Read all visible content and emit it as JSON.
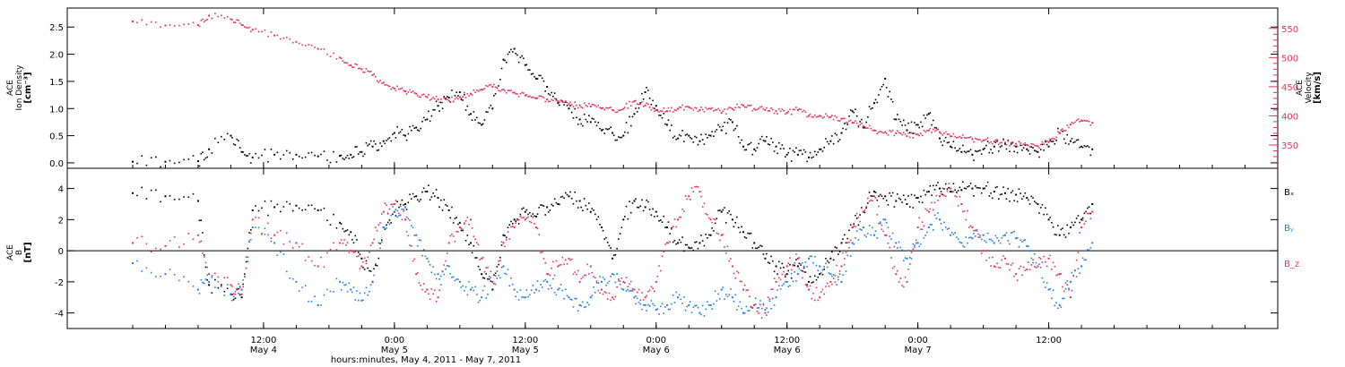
{
  "chart_data": [
    {
      "type": "scatter",
      "panel": "top",
      "left_axis": {
        "label_lines": [
          "ACE",
          "Ion Density",
          "[cm⁻³]"
        ],
        "range": [
          -0.1,
          2.85
        ],
        "ticks": [
          0.0,
          0.5,
          1.0,
          1.5,
          2.0,
          2.5
        ],
        "tick_labels": [
          "0.0",
          "0.5",
          "1.0",
          "1.5",
          "2.0",
          "2.5"
        ]
      },
      "right_axis": {
        "label_lines": [
          "ACE",
          "Velocity",
          "[km/s]"
        ],
        "range": [
          310,
          585
        ],
        "ticks": [
          350,
          400,
          450,
          500,
          550
        ],
        "tick_labels": [
          "350",
          "400",
          "450",
          "500",
          "550"
        ],
        "color": "#e8315b"
      },
      "series": [
        {
          "color": "#000000",
          "axis": "left",
          "x": [
            0,
            3,
            6,
            7,
            9,
            10,
            11,
            13,
            15,
            17,
            19,
            20,
            21,
            22,
            23,
            24,
            25,
            26,
            27,
            28,
            29,
            30,
            31,
            32,
            33,
            34,
            35,
            36,
            37,
            38,
            39,
            40,
            41,
            42,
            43,
            44,
            45,
            46,
            47,
            48,
            49,
            50,
            51,
            52,
            53,
            54,
            55,
            56,
            57,
            58,
            59,
            60,
            61,
            62,
            63,
            64,
            65,
            66,
            67,
            68,
            69,
            70,
            71,
            72,
            73,
            74,
            75,
            76,
            77,
            78,
            79,
            80,
            81,
            82,
            83,
            84,
            85,
            86,
            87,
            88
          ],
          "y": [
            0.02,
            0.02,
            0.03,
            0.25,
            0.5,
            0.2,
            0.1,
            0.15,
            0.15,
            0.12,
            0.13,
            0.15,
            0.2,
            0.3,
            0.4,
            0.55,
            0.5,
            0.65,
            0.8,
            1.05,
            1.2,
            1.3,
            0.9,
            0.7,
            1.0,
            1.9,
            2.1,
            1.8,
            1.55,
            1.4,
            1.1,
            1.0,
            0.8,
            0.75,
            0.6,
            0.55,
            0.5,
            0.9,
            1.3,
            1.05,
            0.7,
            0.45,
            0.5,
            0.4,
            0.5,
            0.6,
            0.75,
            0.3,
            0.25,
            0.4,
            0.3,
            0.15,
            0.15,
            0.1,
            0.25,
            0.4,
            0.55,
            0.95,
            0.65,
            1.1,
            1.55,
            0.8,
            0.6,
            0.7,
            0.9,
            0.45,
            0.3,
            0.2,
            0.15,
            0.25,
            0.3,
            0.35,
            0.3,
            0.25,
            0.2,
            0.3,
            0.55,
            0.4,
            0.3,
            0.25
          ]
        },
        {
          "color": "#e8315b",
          "axis": "right",
          "x": [
            0,
            3,
            6,
            7,
            9,
            10,
            11,
            13,
            15,
            17,
            19,
            20,
            21,
            22,
            23,
            24,
            25,
            26,
            27,
            28,
            29,
            30,
            31,
            32,
            33,
            34,
            35,
            36,
            37,
            38,
            39,
            40,
            41,
            42,
            43,
            44,
            45,
            46,
            47,
            48,
            49,
            50,
            51,
            52,
            53,
            54,
            55,
            56,
            57,
            58,
            59,
            60,
            61,
            62,
            63,
            64,
            65,
            66,
            67,
            68,
            69,
            70,
            71,
            72,
            73,
            74,
            75,
            76,
            77,
            78,
            79,
            80,
            81,
            82,
            83,
            84,
            85,
            86,
            87,
            88
          ],
          "y": [
            562,
            555,
            556,
            572,
            566,
            556,
            548,
            538,
            527,
            515,
            500,
            487,
            480,
            470,
            457,
            447,
            442,
            438,
            432,
            428,
            426,
            432,
            438,
            445,
            450,
            445,
            440,
            435,
            430,
            428,
            425,
            420,
            418,
            416,
            413,
            410,
            412,
            425,
            418,
            410,
            408,
            412,
            415,
            410,
            412,
            405,
            412,
            418,
            412,
            410,
            408,
            405,
            410,
            400,
            400,
            398,
            395,
            388,
            382,
            375,
            372,
            370,
            365,
            368,
            375,
            372,
            365,
            362,
            360,
            358,
            356,
            354,
            352,
            350,
            348,
            355,
            370,
            385,
            392,
            388
          ]
        }
      ]
    },
    {
      "type": "scatter",
      "panel": "bottom",
      "left_axis": {
        "label_lines": [
          "ACE",
          "B",
          "[nT]"
        ],
        "range": [
          -5.0,
          5.3
        ],
        "ticks": [
          -4,
          -2,
          0,
          2,
          4
        ],
        "tick_labels": [
          "-4",
          "-2",
          "0",
          "2",
          "4"
        ]
      },
      "zero_line": 0,
      "series": [
        {
          "name": "Bₓ",
          "color": "#000000",
          "x": [
            0,
            3,
            6,
            7,
            9,
            10,
            11,
            13,
            15,
            17,
            19,
            20,
            21,
            22,
            23,
            24,
            25,
            26,
            27,
            28,
            29,
            30,
            31,
            32,
            33,
            34,
            35,
            36,
            37,
            38,
            39,
            40,
            41,
            42,
            43,
            44,
            45,
            46,
            47,
            48,
            49,
            50,
            51,
            52,
            53,
            54,
            55,
            56,
            57,
            58,
            59,
            60,
            61,
            62,
            63,
            64,
            65,
            66,
            67,
            68,
            69,
            70,
            71,
            72,
            73,
            74,
            75,
            76,
            77,
            78,
            79,
            80,
            81,
            82,
            83,
            84,
            85,
            86,
            87,
            88
          ],
          "y": [
            3.7,
            3.5,
            3.2,
            -2.2,
            -2.8,
            -3.0,
            2.6,
            2.8,
            2.9,
            2.6,
            1.8,
            1.2,
            -0.5,
            -2.0,
            1.5,
            2.5,
            3.0,
            3.5,
            3.8,
            3.4,
            2.6,
            1.8,
            0.5,
            -1.5,
            -2.5,
            1.0,
            2.0,
            2.5,
            2.2,
            2.8,
            3.0,
            3.5,
            3.2,
            2.5,
            1.5,
            -0.5,
            2.0,
            3.2,
            2.8,
            2.5,
            1.5,
            0.5,
            0.2,
            0.5,
            1.0,
            2.5,
            2.0,
            1.2,
            0.5,
            -0.5,
            -1.0,
            -1.5,
            -1.0,
            -2.0,
            -1.5,
            -0.5,
            0.5,
            1.5,
            2.5,
            3.8,
            3.5,
            3.2,
            3.0,
            3.4,
            3.8,
            4.0,
            3.8,
            3.9,
            4.0,
            4.0,
            3.8,
            3.7,
            3.6,
            3.4,
            3.0,
            2.0,
            1.0,
            1.5,
            2.0,
            3.0
          ]
        },
        {
          "name": "Bᵧ",
          "color": "#1f7fe0",
          "x": [
            0,
            3,
            6,
            7,
            9,
            10,
            11,
            13,
            15,
            17,
            19,
            20,
            21,
            22,
            23,
            24,
            25,
            26,
            27,
            28,
            29,
            30,
            31,
            32,
            33,
            34,
            35,
            36,
            37,
            38,
            39,
            40,
            41,
            42,
            43,
            44,
            45,
            46,
            47,
            48,
            49,
            50,
            51,
            52,
            53,
            54,
            55,
            56,
            57,
            58,
            59,
            60,
            61,
            62,
            63,
            64,
            65,
            66,
            67,
            68,
            69,
            70,
            71,
            72,
            73,
            74,
            75,
            76,
            77,
            78,
            79,
            80,
            81,
            82,
            83,
            84,
            85,
            86,
            87,
            88
          ],
          "y": [
            -0.8,
            -1.5,
            -2.5,
            -2.0,
            -2.8,
            -2.5,
            1.5,
            0.5,
            -2.0,
            -3.5,
            -2.0,
            -2.5,
            -3.2,
            -2.0,
            1.5,
            2.5,
            2.8,
            1.0,
            -0.5,
            -1.5,
            -1.0,
            -2.0,
            -2.5,
            -3.0,
            -2.0,
            -1.0,
            -2.5,
            -3.0,
            -2.5,
            -2.0,
            -2.5,
            -3.0,
            -3.5,
            -3.0,
            -2.0,
            -1.5,
            -2.5,
            -3.0,
            -3.5,
            -3.8,
            -3.5,
            -3.0,
            -3.5,
            -4.0,
            -3.5,
            -2.5,
            -3.0,
            -4.0,
            -3.5,
            -3.8,
            -3.0,
            -2.0,
            -1.5,
            -0.5,
            -1.0,
            -1.5,
            -2.0,
            0.5,
            1.5,
            1.0,
            2.0,
            0.5,
            -0.5,
            0.5,
            1.5,
            2.0,
            1.0,
            0.5,
            0.8,
            1.0,
            0.5,
            1.0,
            0.8,
            0.3,
            -1.0,
            -2.5,
            -3.5,
            -2.0,
            -1.0,
            0.5
          ]
        },
        {
          "name": "B_z",
          "color": "#e8315b",
          "x": [
            0,
            3,
            6,
            7,
            9,
            10,
            11,
            13,
            15,
            17,
            19,
            20,
            21,
            22,
            23,
            24,
            25,
            26,
            27,
            28,
            29,
            30,
            31,
            32,
            33,
            34,
            35,
            36,
            37,
            38,
            39,
            40,
            41,
            42,
            43,
            44,
            45,
            46,
            47,
            48,
            49,
            50,
            51,
            52,
            53,
            54,
            55,
            56,
            57,
            58,
            59,
            60,
            61,
            62,
            63,
            64,
            65,
            66,
            67,
            68,
            69,
            70,
            71,
            72,
            73,
            74,
            75,
            76,
            77,
            78,
            79,
            80,
            81,
            82,
            83,
            84,
            85,
            86,
            87,
            88
          ],
          "y": [
            0.5,
            0.3,
            1.0,
            -1.5,
            -2.2,
            -2.8,
            2.0,
            1.0,
            0.5,
            -1.0,
            0.5,
            0.0,
            -1.0,
            0.5,
            2.5,
            3.0,
            2.0,
            -1.5,
            -2.5,
            -3.0,
            0.5,
            1.5,
            2.0,
            -0.5,
            -2.0,
            0.5,
            1.5,
            2.0,
            1.5,
            -1.5,
            -1.0,
            -0.5,
            -2.0,
            -1.0,
            -2.5,
            -3.0,
            -2.0,
            -2.5,
            -3.0,
            -2.0,
            0.5,
            2.0,
            3.5,
            3.8,
            2.0,
            1.0,
            -1.0,
            -2.5,
            -3.5,
            -4.0,
            -2.0,
            -1.0,
            -0.5,
            -2.5,
            -3.0,
            -2.0,
            -1.0,
            1.5,
            2.5,
            3.5,
            1.0,
            -1.5,
            -2.0,
            1.5,
            2.5,
            3.5,
            4.0,
            3.0,
            1.5,
            0.0,
            -1.0,
            -0.5,
            -1.5,
            -1.2,
            -1.0,
            -0.5,
            -1.5,
            -3.0,
            1.5,
            2.5
          ]
        }
      ]
    }
  ],
  "x_axis": {
    "range": [
      -6,
      105
    ],
    "ticks": [
      12,
      24,
      36,
      48,
      60,
      72,
      84
    ],
    "tick_times": [
      "12:00",
      "0:00",
      "12:00",
      "0:00",
      "12:00",
      "0:00",
      "12:00"
    ],
    "tick_dates": [
      "May 4",
      "May 5",
      "May 5",
      "May 6",
      "May 6",
      "May 7",
      ""
    ],
    "label": "hours:minutes, May  4, 2011 - May  7, 2011"
  }
}
